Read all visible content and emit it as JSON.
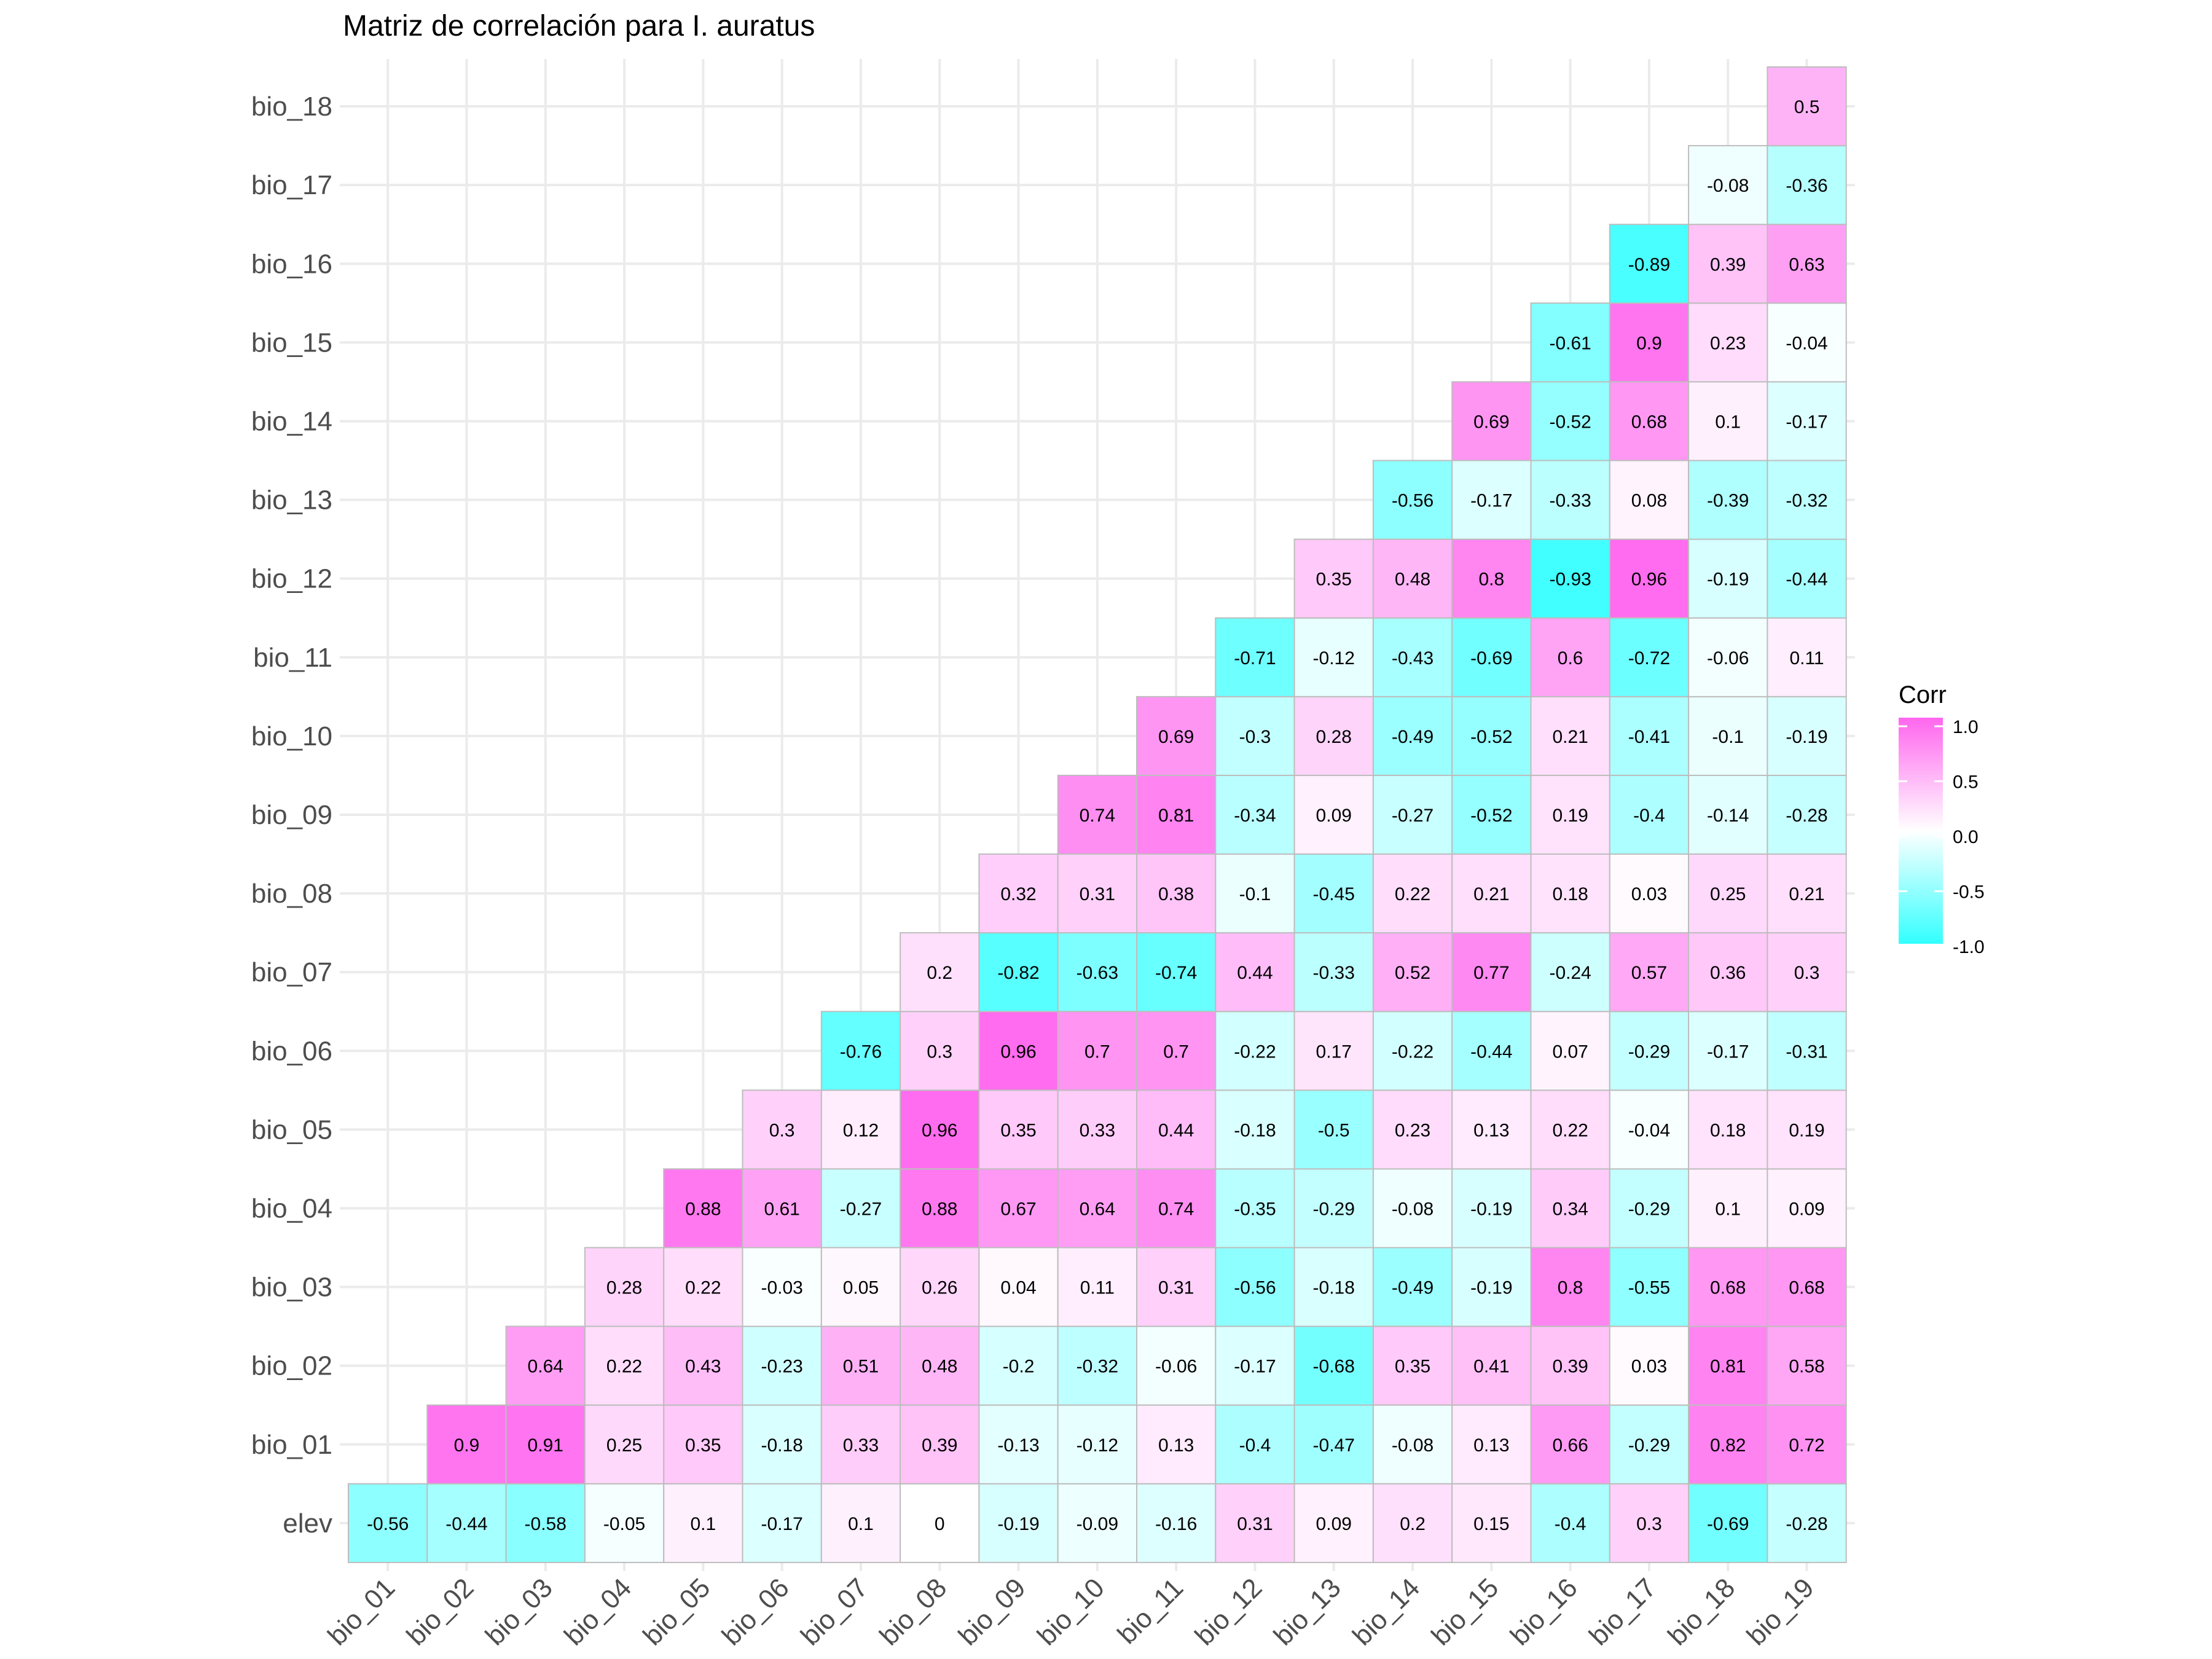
{
  "chart_data": {
    "type": "heatmap",
    "title": "Matriz de correlación para I. auratus",
    "x_labels": [
      "bio_01",
      "bio_02",
      "bio_03",
      "bio_04",
      "bio_05",
      "bio_06",
      "bio_07",
      "bio_08",
      "bio_09",
      "bio_10",
      "bio_11",
      "bio_12",
      "bio_13",
      "bio_14",
      "bio_15",
      "bio_16",
      "bio_17",
      "bio_18",
      "bio_19"
    ],
    "y_labels": [
      "elev",
      "bio_01",
      "bio_02",
      "bio_03",
      "bio_04",
      "bio_05",
      "bio_06",
      "bio_07",
      "bio_08",
      "bio_09",
      "bio_10",
      "bio_11",
      "bio_12",
      "bio_13",
      "bio_14",
      "bio_15",
      "bio_16",
      "bio_17",
      "bio_18"
    ],
    "rows": [
      {
        "y": "elev",
        "values": [
          "-0.56",
          "-0.44",
          "-0.58",
          "-0.05",
          "0.1",
          "-0.17",
          "0.1",
          "0",
          "-0.19",
          "-0.09",
          "-0.16",
          "0.31",
          "0.09",
          "0.2",
          "0.15",
          "-0.4",
          "0.3",
          "-0.69",
          "-0.28"
        ]
      },
      {
        "y": "bio_01",
        "values": [
          null,
          "0.9",
          "0.91",
          "0.25",
          "0.35",
          "-0.18",
          "0.33",
          "0.39",
          "-0.13",
          "-0.12",
          "0.13",
          "-0.4",
          "-0.47",
          "-0.08",
          "0.13",
          "0.66",
          "-0.29",
          "0.82",
          "0.72"
        ]
      },
      {
        "y": "bio_02",
        "values": [
          null,
          null,
          "0.64",
          "0.22",
          "0.43",
          "-0.23",
          "0.51",
          "0.48",
          "-0.2",
          "-0.32",
          "-0.06",
          "-0.17",
          "-0.68",
          "0.35",
          "0.41",
          "0.39",
          "0.03",
          "0.81",
          "0.58"
        ]
      },
      {
        "y": "bio_03",
        "values": [
          null,
          null,
          null,
          "0.28",
          "0.22",
          "-0.03",
          "0.05",
          "0.26",
          "0.04",
          "0.11",
          "0.31",
          "-0.56",
          "-0.18",
          "-0.49",
          "-0.19",
          "0.8",
          "-0.55",
          "0.68",
          "0.68"
        ]
      },
      {
        "y": "bio_04",
        "values": [
          null,
          null,
          null,
          null,
          "0.88",
          "0.61",
          "-0.27",
          "0.88",
          "0.67",
          "0.64",
          "0.74",
          "-0.35",
          "-0.29",
          "-0.08",
          "-0.19",
          "0.34",
          "-0.29",
          "0.1",
          "0.09"
        ]
      },
      {
        "y": "bio_05",
        "values": [
          null,
          null,
          null,
          null,
          null,
          "0.3",
          "0.12",
          "0.96",
          "0.35",
          "0.33",
          "0.44",
          "-0.18",
          "-0.5",
          "0.23",
          "0.13",
          "0.22",
          "-0.04",
          "0.18",
          "0.19"
        ]
      },
      {
        "y": "bio_06",
        "values": [
          null,
          null,
          null,
          null,
          null,
          null,
          "-0.76",
          "0.3",
          "0.96",
          "0.7",
          "0.7",
          "-0.22",
          "0.17",
          "-0.22",
          "-0.44",
          "0.07",
          "-0.29",
          "-0.17",
          "-0.31"
        ]
      },
      {
        "y": "bio_07",
        "values": [
          null,
          null,
          null,
          null,
          null,
          null,
          null,
          "0.2",
          "-0.82",
          "-0.63",
          "-0.74",
          "0.44",
          "-0.33",
          "0.52",
          "0.77",
          "-0.24",
          "0.57",
          "0.36",
          "0.3"
        ]
      },
      {
        "y": "bio_08",
        "values": [
          null,
          null,
          null,
          null,
          null,
          null,
          null,
          null,
          "0.32",
          "0.31",
          "0.38",
          "-0.1",
          "-0.45",
          "0.22",
          "0.21",
          "0.18",
          "0.03",
          "0.25",
          "0.21"
        ]
      },
      {
        "y": "bio_09",
        "values": [
          null,
          null,
          null,
          null,
          null,
          null,
          null,
          null,
          null,
          "0.74",
          "0.81",
          "-0.34",
          "0.09",
          "-0.27",
          "-0.52",
          "0.19",
          "-0.4",
          "-0.14",
          "-0.28"
        ]
      },
      {
        "y": "bio_10",
        "values": [
          null,
          null,
          null,
          null,
          null,
          null,
          null,
          null,
          null,
          null,
          "0.69",
          "-0.3",
          "0.28",
          "-0.49",
          "-0.52",
          "0.21",
          "-0.41",
          "-0.1",
          "-0.19"
        ]
      },
      {
        "y": "bio_11",
        "values": [
          null,
          null,
          null,
          null,
          null,
          null,
          null,
          null,
          null,
          null,
          null,
          "-0.71",
          "-0.12",
          "-0.43",
          "-0.69",
          "0.6",
          "-0.72",
          "-0.06",
          "0.11"
        ]
      },
      {
        "y": "bio_12",
        "values": [
          null,
          null,
          null,
          null,
          null,
          null,
          null,
          null,
          null,
          null,
          null,
          null,
          "0.35",
          "0.48",
          "0.8",
          "-0.93",
          "0.96",
          "-0.19",
          "-0.44"
        ]
      },
      {
        "y": "bio_13",
        "values": [
          null,
          null,
          null,
          null,
          null,
          null,
          null,
          null,
          null,
          null,
          null,
          null,
          null,
          "-0.56",
          "-0.17",
          "-0.33",
          "0.08",
          "-0.39",
          "-0.32"
        ]
      },
      {
        "y": "bio_14",
        "values": [
          null,
          null,
          null,
          null,
          null,
          null,
          null,
          null,
          null,
          null,
          null,
          null,
          null,
          null,
          "0.69",
          "-0.52",
          "0.68",
          "0.1",
          "-0.17"
        ]
      },
      {
        "y": "bio_15",
        "values": [
          null,
          null,
          null,
          null,
          null,
          null,
          null,
          null,
          null,
          null,
          null,
          null,
          null,
          null,
          null,
          "-0.61",
          "0.9",
          "0.23",
          "-0.04"
        ]
      },
      {
        "y": "bio_16",
        "values": [
          null,
          null,
          null,
          null,
          null,
          null,
          null,
          null,
          null,
          null,
          null,
          null,
          null,
          null,
          null,
          null,
          "-0.89",
          "0.39",
          "0.63"
        ]
      },
      {
        "y": "bio_17",
        "values": [
          null,
          null,
          null,
          null,
          null,
          null,
          null,
          null,
          null,
          null,
          null,
          null,
          null,
          null,
          null,
          null,
          null,
          "-0.08",
          "-0.36"
        ]
      },
      {
        "y": "bio_18",
        "values": [
          null,
          null,
          null,
          null,
          null,
          null,
          null,
          null,
          null,
          null,
          null,
          null,
          null,
          null,
          null,
          null,
          null,
          null,
          "0.5"
        ]
      }
    ],
    "legend": {
      "title": "Corr",
      "placement": "right",
      "ticks": [
        "1.0",
        "0.5",
        "0.0",
        "-0.5",
        "-1.0"
      ],
      "range": [
        -1,
        1
      ],
      "colors": {
        "low": "#33FFFF",
        "mid": "#FFFFFF",
        "high": "#FF66EE"
      }
    },
    "grid": true
  }
}
